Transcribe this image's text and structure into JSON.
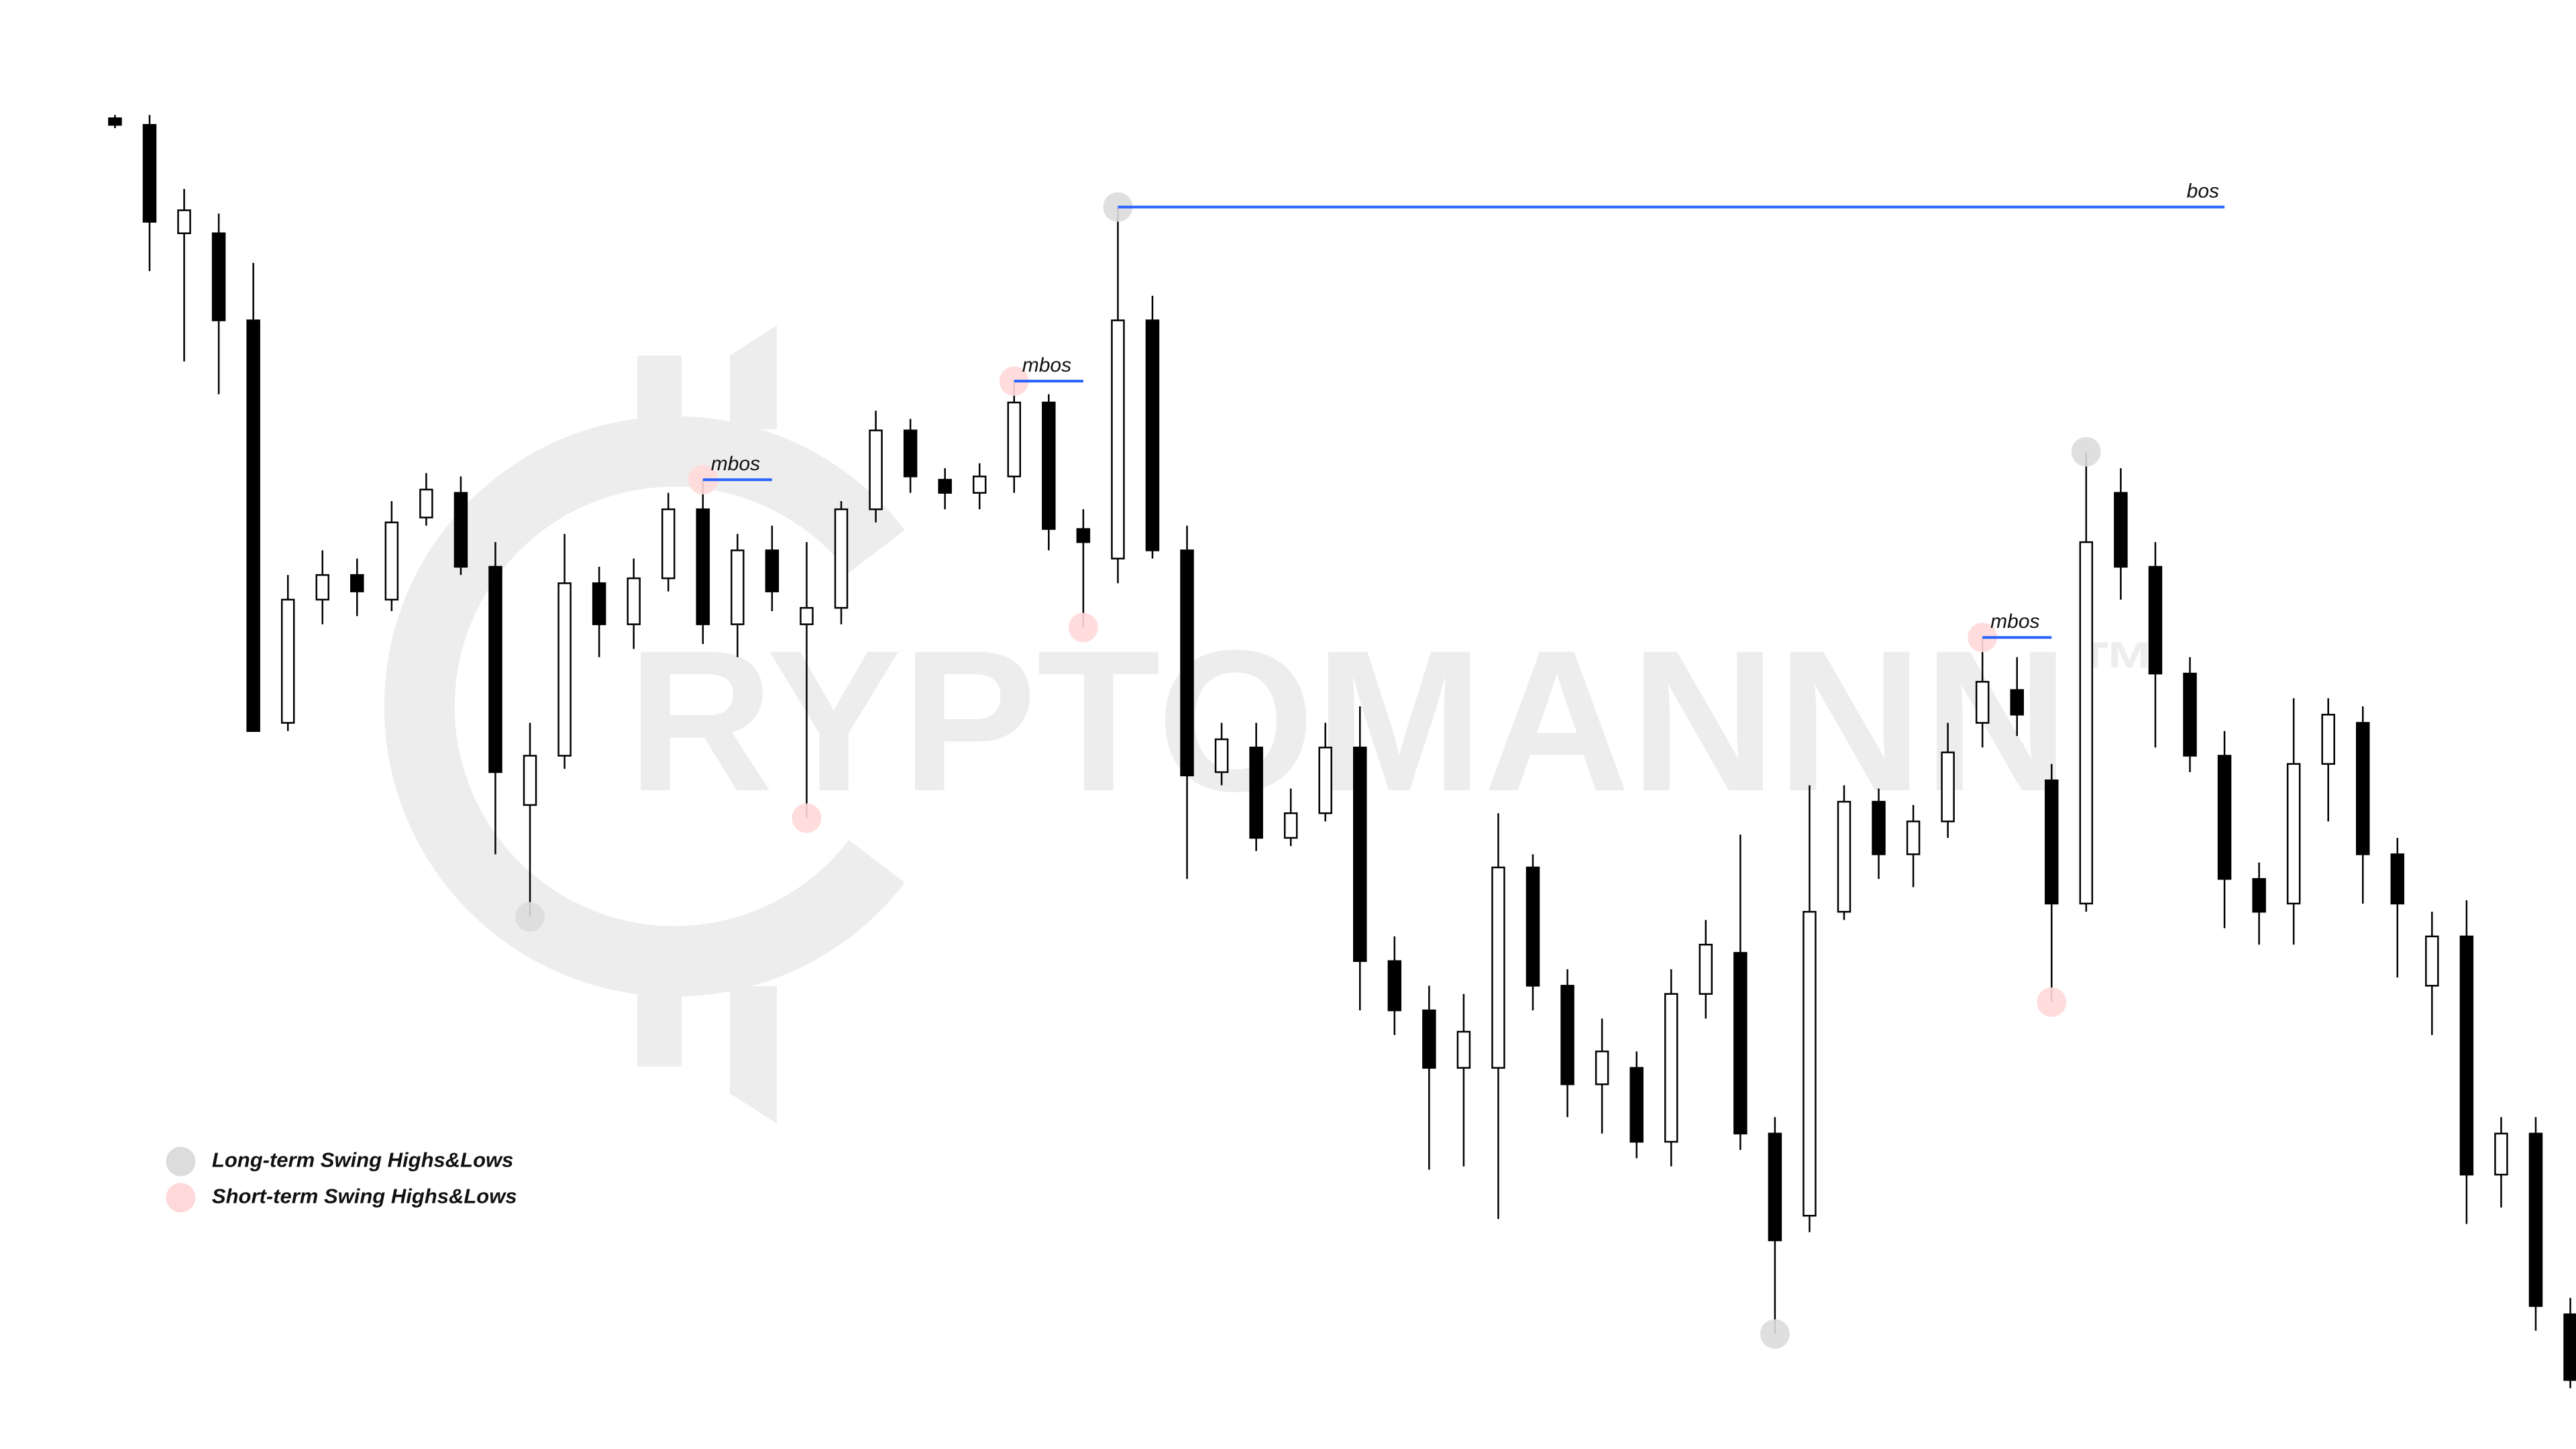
{
  "chart_data": {
    "type": "candlestick",
    "open": [
      810,
      806,
      740,
      740,
      687,
      442,
      517,
      532,
      517,
      567,
      582,
      537,
      392,
      422,
      527,
      502,
      530,
      572,
      502,
      547,
      502,
      512,
      572,
      620,
      590,
      582,
      592,
      637,
      560,
      542,
      687,
      547,
      412,
      427,
      372,
      387,
      427,
      297,
      267,
      232,
      232,
      354,
      282,
      222,
      232,
      187,
      277,
      302,
      192,
      142,
      327,
      394,
      362,
      382,
      442,
      462,
      407,
      332,
      582,
      537,
      472,
      422,
      347,
      332,
      417,
      442,
      362,
      282,
      312,
      167,
      192,
      82
    ],
    "high": [
      812,
      812,
      767,
      752,
      722,
      532,
      547,
      542,
      577,
      594,
      592,
      552,
      442,
      557,
      537,
      542,
      582,
      590,
      557,
      562,
      552,
      577,
      632,
      627,
      597,
      600,
      650,
      642,
      572,
      756,
      702,
      562,
      442,
      442,
      402,
      442,
      452,
      312,
      282,
      277,
      387,
      362,
      292,
      262,
      242,
      292,
      322,
      374,
      202,
      404,
      404,
      402,
      392,
      442,
      494,
      482,
      417,
      607,
      597,
      552,
      482,
      437,
      357,
      457,
      457,
      452,
      372,
      327,
      334,
      202,
      202,
      92
    ],
    "low": [
      804,
      717,
      662,
      642,
      437,
      437,
      502,
      507,
      510,
      562,
      532,
      362,
      324,
      414,
      482,
      487,
      522,
      490,
      482,
      510,
      384,
      502,
      564,
      582,
      572,
      572,
      582,
      547,
      500,
      527,
      542,
      347,
      404,
      364,
      367,
      382,
      267,
      252,
      170,
      172,
      140,
      267,
      202,
      192,
      177,
      172,
      262,
      182,
      70,
      132,
      322,
      347,
      342,
      372,
      427,
      434,
      272,
      327,
      517,
      427,
      412,
      317,
      307,
      307,
      382,
      332,
      287,
      252,
      137,
      147,
      72,
      37
    ],
    "close": [
      806,
      747,
      754,
      687,
      437,
      517,
      532,
      522,
      564,
      584,
      537,
      412,
      422,
      527,
      502,
      530,
      572,
      502,
      547,
      522,
      512,
      572,
      620,
      592,
      582,
      592,
      637,
      560,
      552,
      687,
      547,
      410,
      432,
      372,
      387,
      427,
      297,
      267,
      232,
      254,
      354,
      282,
      222,
      242,
      187,
      277,
      307,
      192,
      127,
      327,
      394,
      362,
      382,
      424,
      467,
      447,
      332,
      552,
      537,
      472,
      422,
      347,
      327,
      417,
      447,
      362,
      332,
      312,
      167,
      192,
      87,
      42
    ],
    "up_color": "#ffffff",
    "down_color": "#000000",
    "ylim": [
      0,
      882
    ],
    "legend": [
      {
        "name": "Long-term Swing Highs&Lows",
        "color": "#dcdcdc"
      },
      {
        "name": "Short-term Swing Highs&Lows",
        "color": "#ffd9d9"
      }
    ],
    "swing_points": [
      {
        "legend": 0,
        "candle": 12,
        "at": "low"
      },
      {
        "legend": 0,
        "candle": 29,
        "at": "high"
      },
      {
        "legend": 0,
        "candle": 48,
        "at": "low"
      },
      {
        "legend": 0,
        "candle": 57,
        "at": "high"
      },
      {
        "legend": 1,
        "candle": 17,
        "at": "high"
      },
      {
        "legend": 1,
        "candle": 20,
        "at": "low"
      },
      {
        "legend": 1,
        "candle": 26,
        "at": "high"
      },
      {
        "legend": 1,
        "candle": 28,
        "at": "low"
      },
      {
        "legend": 1,
        "candle": 54,
        "at": "high"
      },
      {
        "legend": 1,
        "candle": 56,
        "at": "low"
      }
    ],
    "levels": [
      {
        "label": "mbos",
        "from": 17,
        "to": 19,
        "color": "#2962ff",
        "label_at": "start"
      },
      {
        "label": "mbos",
        "from": 26,
        "to": 28,
        "color": "#2962ff",
        "label_at": "start"
      },
      {
        "label": "mbos",
        "from": 54,
        "to": 56,
        "color": "#2962ff",
        "label_at": "start"
      },
      {
        "label": "bos",
        "from": 29,
        "to": 61,
        "color": "#2962ff",
        "label_at": "end"
      }
    ],
    "watermark": "RYPTOMANNN",
    "watermark_mark": "™"
  }
}
